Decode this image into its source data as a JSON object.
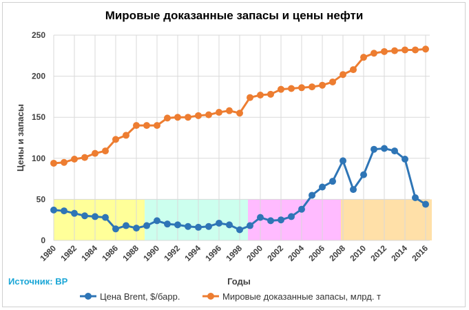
{
  "chart_data": {
    "type": "line",
    "title": "Мировые доказанные  запасы и цены нефти",
    "xlabel": "Годы",
    "ylabel": "Цены и запасы",
    "source": "Источник: BP",
    "ylim": [
      0,
      250
    ],
    "yticks": [
      0,
      50,
      100,
      150,
      200,
      250
    ],
    "xlim": [
      1980,
      2016
    ],
    "xticks": [
      1980,
      1982,
      1984,
      1986,
      1988,
      1990,
      1992,
      1994,
      1996,
      1998,
      2000,
      2002,
      2004,
      2006,
      2008,
      2010,
      2012,
      2014,
      2016
    ],
    "grid": true,
    "legend_position": "bottom",
    "x": [
      1980,
      1981,
      1982,
      1983,
      1984,
      1985,
      1986,
      1987,
      1988,
      1989,
      1990,
      1991,
      1992,
      1993,
      1994,
      1995,
      1996,
      1997,
      1998,
      1999,
      2000,
      2001,
      2002,
      2003,
      2004,
      2005,
      2006,
      2007,
      2008,
      2009,
      2010,
      2011,
      2012,
      2013,
      2014,
      2015,
      2016
    ],
    "series": [
      {
        "name": "Цена Brent, $/барр.",
        "color": "#2e75b6",
        "values": [
          37,
          36,
          33,
          30,
          29,
          28,
          14,
          18,
          15,
          18,
          24,
          20,
          19,
          17,
          16,
          17,
          21,
          19,
          13,
          18,
          28,
          24,
          25,
          29,
          38,
          55,
          65,
          72,
          97,
          62,
          80,
          111,
          112,
          109,
          99,
          52,
          44
        ]
      },
      {
        "name": "Мировые доказанные запасы, млрд. т",
        "color": "#ed7d31",
        "values": [
          94,
          95,
          99,
          101,
          106,
          109,
          123,
          128,
          140,
          140,
          140,
          149,
          150,
          150,
          152,
          153,
          156,
          158,
          155,
          174,
          177,
          178,
          184,
          185,
          186,
          187,
          189,
          193,
          202,
          208,
          223,
          228,
          230,
          231,
          232,
          232,
          233
        ]
      }
    ],
    "bands": [
      {
        "from": 1980,
        "to": 1988.8,
        "y_max": 50,
        "color": "#ffff99"
      },
      {
        "from": 1988.8,
        "to": 1998.8,
        "y_max": 50,
        "color": "#ccffee"
      },
      {
        "from": 1998.8,
        "to": 2007.8,
        "y_max": 50,
        "color": "#ffbbff"
      },
      {
        "from": 2007.8,
        "to": 2016.6,
        "y_max": 50,
        "color": "#ffe0a8"
      }
    ]
  }
}
